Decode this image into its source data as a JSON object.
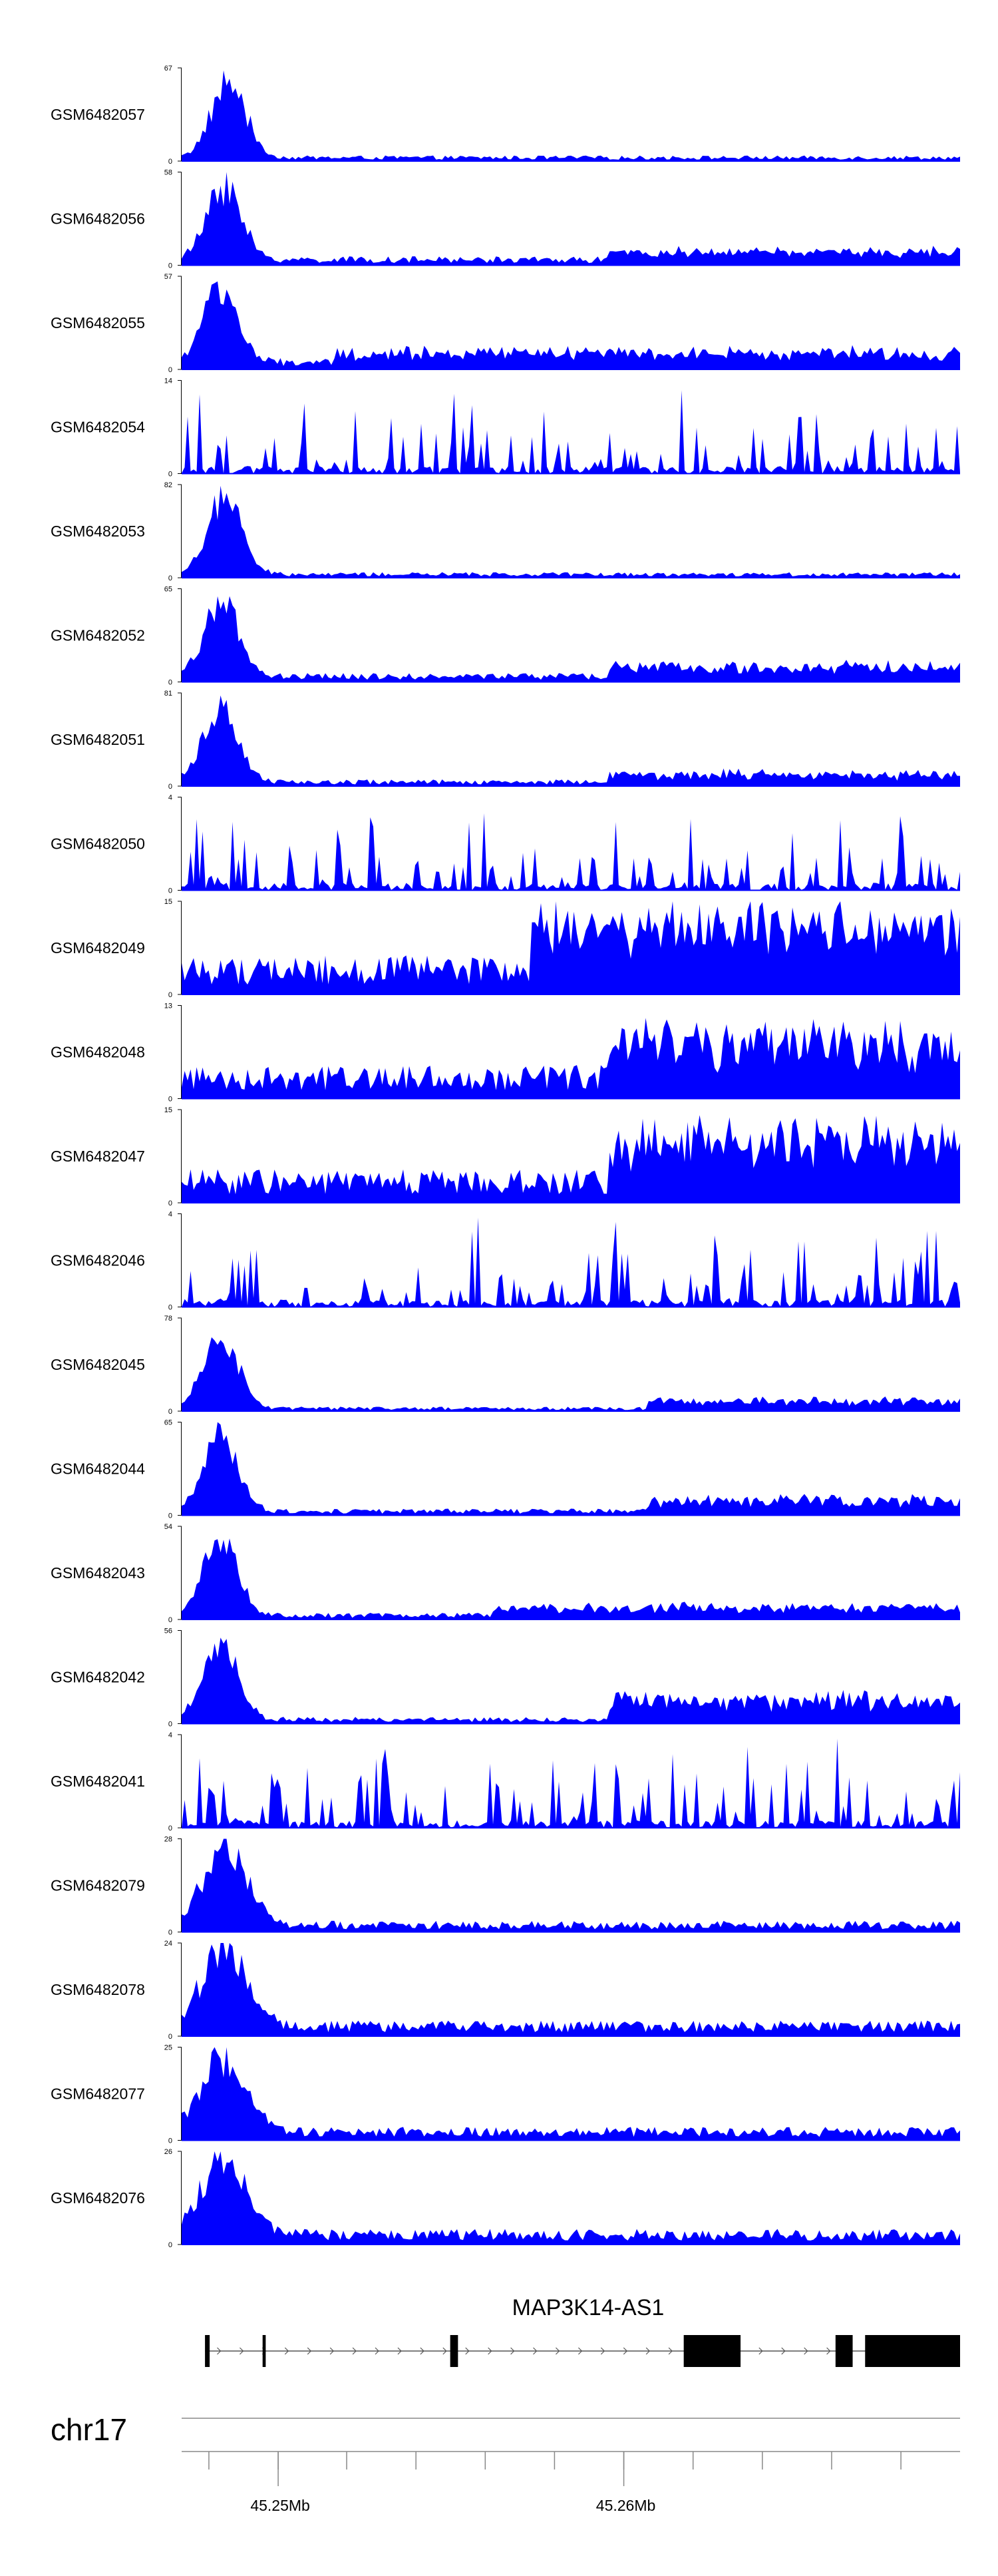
{
  "chart_data": {
    "type": "area",
    "fill_color": "#0000FF",
    "tracks": [
      {
        "name": "GSM6482057",
        "ymax": 67,
        "peak": [
          0.02,
          0.1,
          0.03
        ],
        "bg": 0.05,
        "sparse": false,
        "region": null
      },
      {
        "name": "GSM6482056",
        "ymax": 58,
        "peak": [
          0.02,
          0.09,
          0.03
        ],
        "bg": 0.08,
        "sparse": false,
        "region": [
          0.55,
          1.0,
          0.1
        ]
      },
      {
        "name": "GSM6482055",
        "ymax": 57,
        "peak": [
          0.02,
          0.08,
          0.03
        ],
        "bg": 0.1,
        "sparse": false,
        "region": [
          0.2,
          1.0,
          0.12
        ]
      },
      {
        "name": "GSM6482054",
        "ymax": 14,
        "peak": null,
        "bg": 0.22,
        "sparse": true,
        "region": null
      },
      {
        "name": "GSM6482053",
        "ymax": 82,
        "peak": [
          0.02,
          0.09,
          0.03
        ],
        "bg": 0.05,
        "sparse": false,
        "region": null
      },
      {
        "name": "GSM6482052",
        "ymax": 65,
        "peak": [
          0.02,
          0.08,
          0.03
        ],
        "bg": 0.08,
        "sparse": false,
        "region": [
          0.55,
          1.0,
          0.12
        ]
      },
      {
        "name": "GSM6482051",
        "ymax": 81,
        "peak": [
          0.02,
          0.08,
          0.03
        ],
        "bg": 0.06,
        "sparse": false,
        "region": [
          0.55,
          1.0,
          0.1
        ]
      },
      {
        "name": "GSM6482050",
        "ymax": 4,
        "peak": null,
        "bg": 0.55,
        "sparse": true,
        "region": null
      },
      {
        "name": "GSM6482049",
        "ymax": 15,
        "peak": null,
        "bg": 0.35,
        "sparse": false,
        "region": [
          0.45,
          1.0,
          0.55
        ]
      },
      {
        "name": "GSM6482048",
        "ymax": 13,
        "peak": null,
        "bg": 0.3,
        "sparse": false,
        "region": [
          0.55,
          1.0,
          0.45
        ]
      },
      {
        "name": "GSM6482047",
        "ymax": 15,
        "peak": null,
        "bg": 0.3,
        "sparse": false,
        "region": [
          0.55,
          1.0,
          0.5
        ]
      },
      {
        "name": "GSM6482046",
        "ymax": 4,
        "peak": null,
        "bg": 0.55,
        "sparse": true,
        "region": null
      },
      {
        "name": "GSM6482045",
        "ymax": 78,
        "peak": [
          0.02,
          0.08,
          0.03
        ],
        "bg": 0.04,
        "sparse": false,
        "region": [
          0.6,
          1.0,
          0.1
        ]
      },
      {
        "name": "GSM6482044",
        "ymax": 65,
        "peak": [
          0.02,
          0.08,
          0.03
        ],
        "bg": 0.06,
        "sparse": false,
        "region": [
          0.6,
          1.0,
          0.14
        ]
      },
      {
        "name": "GSM6482043",
        "ymax": 54,
        "peak": [
          0.02,
          0.08,
          0.03
        ],
        "bg": 0.06,
        "sparse": false,
        "region": [
          0.4,
          1.0,
          0.1
        ]
      },
      {
        "name": "GSM6482042",
        "ymax": 56,
        "peak": [
          0.02,
          0.08,
          0.03
        ],
        "bg": 0.06,
        "sparse": false,
        "region": [
          0.55,
          1.0,
          0.25
        ]
      },
      {
        "name": "GSM6482041",
        "ymax": 4,
        "peak": null,
        "bg": 0.55,
        "sparse": true,
        "region": null
      },
      {
        "name": "GSM6482079",
        "ymax": 28,
        "peak": [
          0.02,
          0.09,
          0.04
        ],
        "bg": 0.1,
        "sparse": false,
        "region": null
      },
      {
        "name": "GSM6482078",
        "ymax": 24,
        "peak": [
          0.02,
          0.09,
          0.04
        ],
        "bg": 0.14,
        "sparse": false,
        "region": null
      },
      {
        "name": "GSM6482077",
        "ymax": 25,
        "peak": [
          0.02,
          0.09,
          0.04
        ],
        "bg": 0.12,
        "sparse": false,
        "region": null
      },
      {
        "name": "GSM6482076",
        "ymax": 26,
        "peak": [
          0.02,
          0.09,
          0.04
        ],
        "bg": 0.14,
        "sparse": false,
        "region": null
      }
    ],
    "gene": {
      "name": "MAP3K14-AS1",
      "blocks": [
        [
          0.03,
          0.036
        ],
        [
          0.104,
          0.108
        ],
        [
          0.345,
          0.355
        ],
        [
          0.645,
          0.718
        ],
        [
          0.84,
          0.862
        ],
        [
          0.878,
          1.0
        ]
      ]
    },
    "axis": {
      "chromosome": "chr17",
      "tick_labels": [
        {
          "text": "45.25Mb",
          "pos": 0.124
        },
        {
          "text": "45.26Mb",
          "pos": 0.568
        }
      ],
      "minor_ticks": [
        0.035,
        0.124,
        0.212,
        0.301,
        0.39,
        0.479,
        0.568,
        0.657,
        0.746,
        0.835,
        0.924
      ]
    }
  }
}
